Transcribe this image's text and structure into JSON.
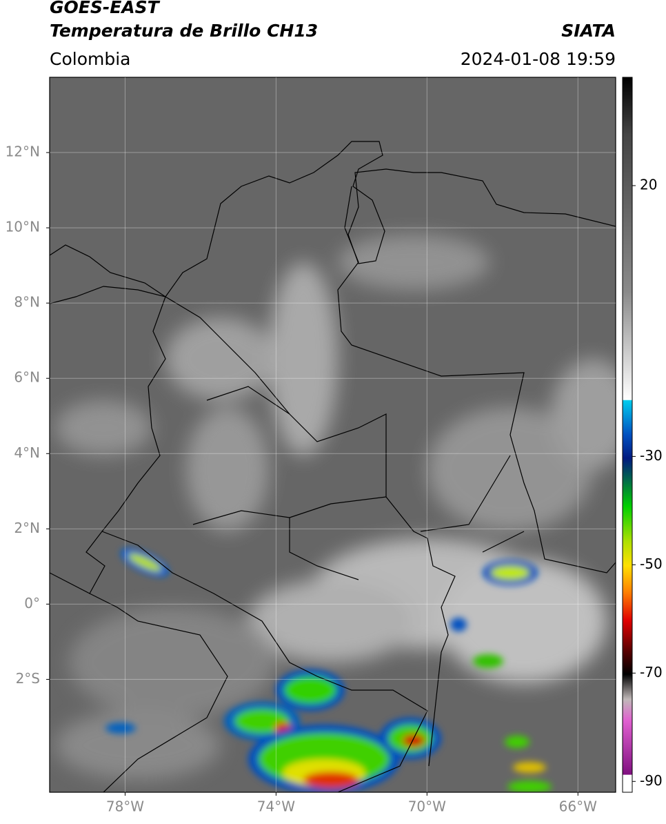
{
  "header": {
    "title": "GOES-EAST",
    "subtitle": "Temperatura de Brillo CH13",
    "region": "Colombia",
    "source": "SIATA",
    "datetime": "2024-01-08 19:59"
  },
  "map": {
    "xlim": [
      -80,
      -65
    ],
    "ylim": [
      -5,
      14
    ],
    "xticks": [
      {
        "value": -78,
        "label": "78°W"
      },
      {
        "value": -74,
        "label": "74°W"
      },
      {
        "value": -70,
        "label": "70°W"
      },
      {
        "value": -66,
        "label": "66°W"
      }
    ],
    "yticks": [
      {
        "value": 12,
        "label": "12°N"
      },
      {
        "value": 10,
        "label": "10°N"
      },
      {
        "value": 8,
        "label": "8°N"
      },
      {
        "value": 6,
        "label": "6°N"
      },
      {
        "value": 4,
        "label": "4°N"
      },
      {
        "value": 2,
        "label": "2°N"
      },
      {
        "value": 0,
        "label": "0°"
      },
      {
        "value": -2,
        "label": "2°S"
      }
    ],
    "grid": true
  },
  "colorbar": {
    "lim": [
      -92,
      40
    ],
    "ticks": [
      20,
      -30,
      -50,
      -70,
      -90
    ]
  }
}
